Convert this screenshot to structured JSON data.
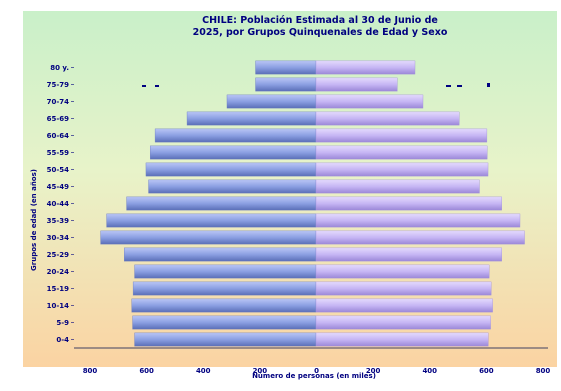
{
  "chart_data": {
    "type": "bar",
    "orientation": "horizontal",
    "title_line1": "CHILE: Población Estimada al 30 de Junio de",
    "title_line2": "2025, por Grupos Quinquenales de Edad y Sexo",
    "ylabel": "Grupos de edad (en años)",
    "xlabel": "Número de personas (en miles)",
    "categories": [
      "0-4",
      "5-9",
      "10-14",
      "15-19",
      "20-24",
      "25-29",
      "30-34",
      "35-39",
      "40-44",
      "45-49",
      "50-54",
      "55-59",
      "60-64",
      "65-69",
      "70-74",
      "75-79",
      "80 y."
    ],
    "xticks": [
      "800",
      "600",
      "400",
      "200",
      "0",
      "200",
      "400",
      "600",
      "800"
    ],
    "xlim": [
      -800,
      800
    ],
    "series": [
      {
        "values": [
          636,
          643,
          646,
          641,
          636,
          672,
          755,
          734,
          664,
          587,
          596,
          581,
          564,
          452,
          312,
          212,
          212
        ],
        "color": "#8b9fe2"
      },
      {
        "values": [
          604,
          612,
          619,
          614,
          607,
          651,
          731,
          715,
          651,
          573,
          603,
          600,
          599,
          502,
          375,
          285,
          347
        ],
        "color": "#c6b6f4"
      }
    ],
    "background": {
      "top": "#c9f0c9",
      "bottom": "#fbd3a2"
    },
    "axis_color": "#000080"
  }
}
